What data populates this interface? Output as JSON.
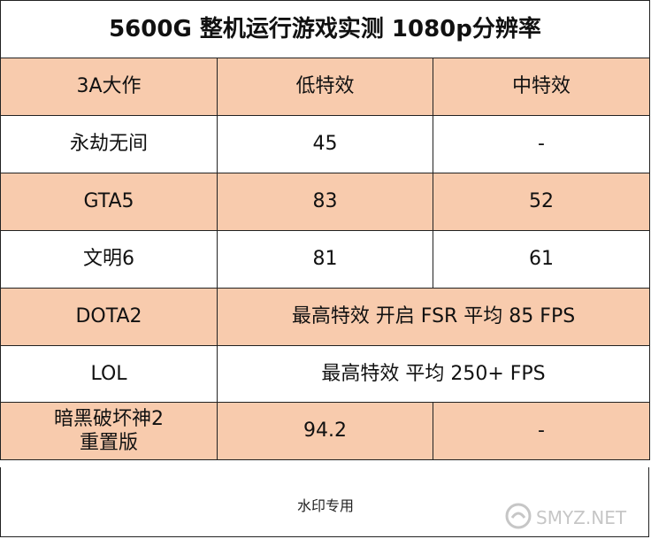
{
  "title": "5600G 整机运行游戏实测 1080p分辨率",
  "header": [
    "3A大作",
    "低特效",
    "中特效"
  ],
  "rows": [
    {
      "game": "永劫无间",
      "low": "45",
      "mid": "-"
    },
    {
      "game": "GTA5",
      "low": "83",
      "mid": "52"
    },
    {
      "game": "文明6",
      "low": "81",
      "mid": "61"
    },
    {
      "game": "DOTA2",
      "merged": "最高特效 开启 FSR 平均  85 FPS"
    },
    {
      "game": "LOL",
      "merged": "最高特效 平均 250+ FPS"
    },
    {
      "game_line1": "暗黑破坏神2",
      "game_line2": "重置版",
      "low": "94.2",
      "mid": "-"
    }
  ],
  "footer": "水印专用",
  "watermark": {
    "text": "SMYZ.NET",
    "icon": "smzdm-logo-icon"
  },
  "colors": {
    "peach": "#f8cbad",
    "white": "#ffffff",
    "border": "#222222"
  }
}
